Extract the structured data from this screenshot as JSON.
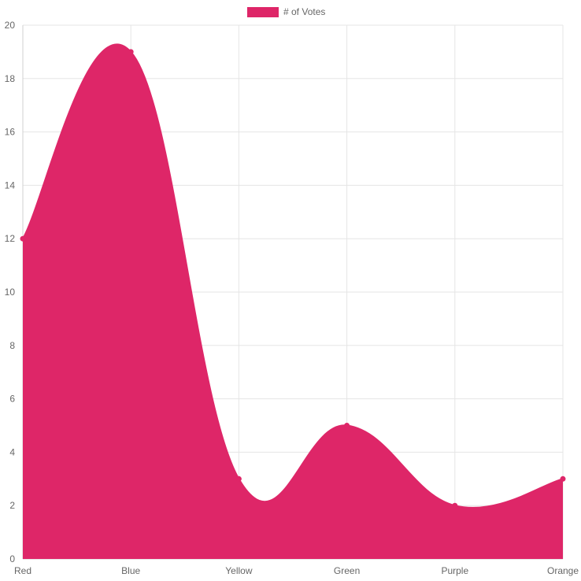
{
  "chart_data": {
    "type": "area",
    "categories": [
      "Red",
      "Blue",
      "Yellow",
      "Green",
      "Purple",
      "Orange"
    ],
    "series": [
      {
        "name": "# of Votes",
        "values": [
          12,
          19,
          3,
          5,
          2,
          3
        ],
        "color": "#de2668"
      }
    ],
    "ylim": [
      0,
      20
    ],
    "yticks": [
      0,
      2,
      4,
      6,
      8,
      10,
      12,
      14,
      16,
      18,
      20
    ],
    "grid": true,
    "legend_position": "top",
    "curve": "smooth"
  }
}
